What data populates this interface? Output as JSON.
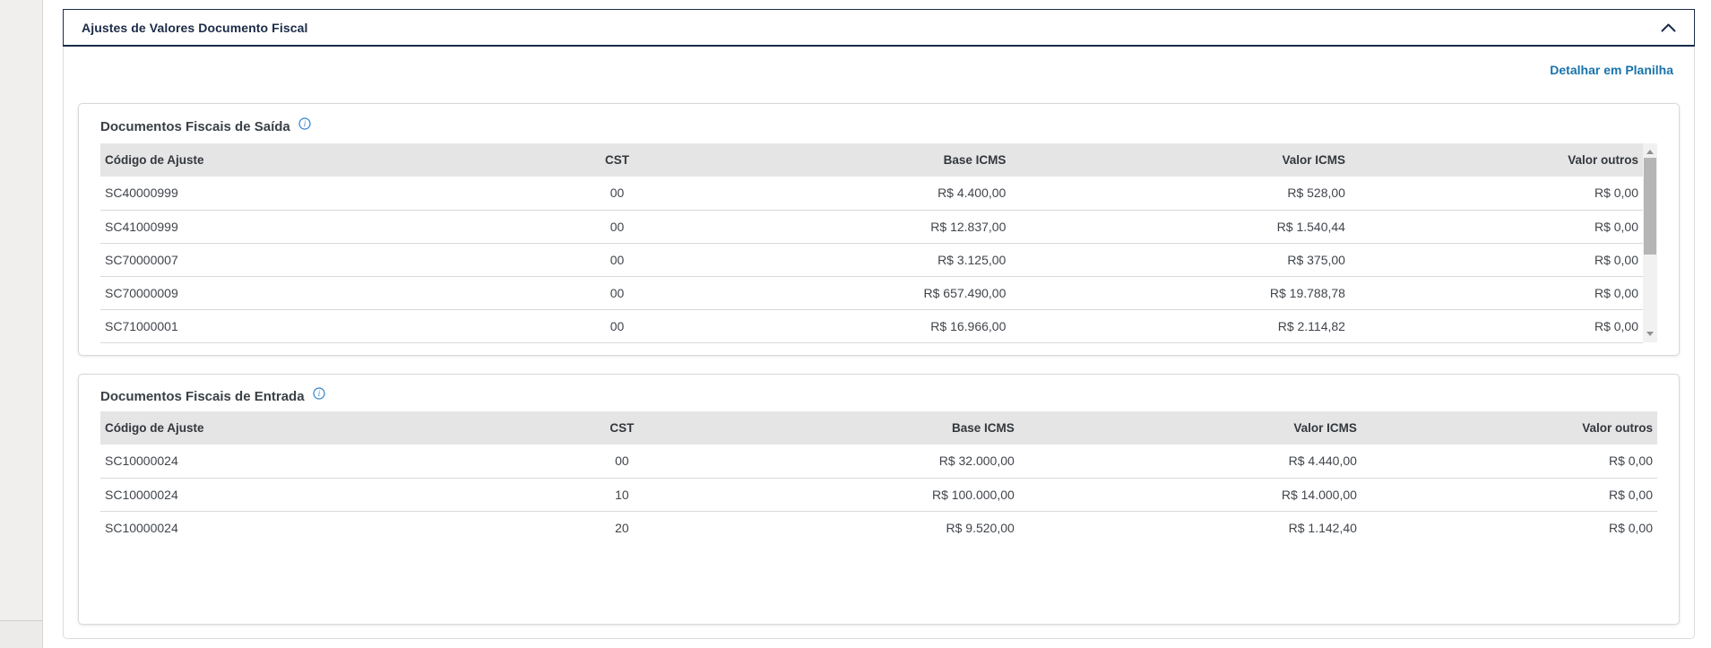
{
  "panel": {
    "title": "Ajustes de Valores Documento Fiscal",
    "detail_link": "Detalhar em Planilha"
  },
  "columns": [
    "Código de Ajuste",
    "CST",
    "Base ICMS",
    "Valor ICMS",
    "Valor outros"
  ],
  "tables": [
    {
      "title": "Documentos Fiscais de Saída",
      "has_scrollbar": true,
      "rows": [
        [
          "SC40000999",
          "00",
          "R$ 4.400,00",
          "R$ 528,00",
          "R$ 0,00"
        ],
        [
          "SC41000999",
          "00",
          "R$ 12.837,00",
          "R$ 1.540,44",
          "R$ 0,00"
        ],
        [
          "SC70000007",
          "00",
          "R$ 3.125,00",
          "R$ 375,00",
          "R$ 0,00"
        ],
        [
          "SC70000009",
          "00",
          "R$ 657.490,00",
          "R$ 19.788,78",
          "R$ 0,00"
        ],
        [
          "SC71000001",
          "00",
          "R$ 16.966,00",
          "R$ 2.114,82",
          "R$ 0,00"
        ]
      ]
    },
    {
      "title": "Documentos Fiscais de Entrada",
      "has_scrollbar": false,
      "rows": [
        [
          "SC10000024",
          "00",
          "R$ 32.000,00",
          "R$ 4.440,00",
          "R$ 0,00"
        ],
        [
          "SC10000024",
          "10",
          "R$ 100.000,00",
          "R$ 14.000,00",
          "R$ 0,00"
        ],
        [
          "SC10000024",
          "20",
          "R$ 9.520,00",
          "R$ 1.142,40",
          "R$ 0,00"
        ]
      ]
    }
  ],
  "icons": {
    "panel_toggle": "chevron-up-icon",
    "table_info": "info-icon"
  },
  "colors": {
    "navy_accent": "#1b2b47",
    "link_blue": "#1a73ab",
    "info_blue": "#2f80d0",
    "table_header_bg": "#e6e5e5",
    "row_divider": "#d9d9d9",
    "sidebar_gray": "#f1efee"
  }
}
